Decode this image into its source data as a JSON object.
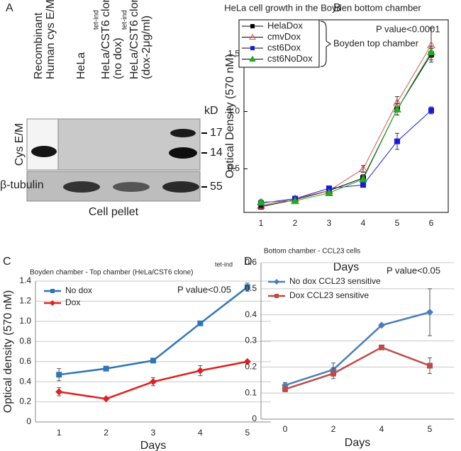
{
  "blot": {
    "panel_label": "A",
    "lanes": [
      {
        "lines": [
          "Recombinant",
          "Human cys E/M"
        ]
      },
      {
        "lines": [
          "HeLa"
        ]
      },
      {
        "lines": [
          "HeLa/CST6 clone",
          "(no dox)"
        ],
        "superscript": "tet-ind"
      },
      {
        "lines": [
          "HeLa/CST6 clone",
          "(dox-2μg/ml)"
        ],
        "superscript": "tet-ind"
      }
    ],
    "kd_label": "kD",
    "markers": [
      "17",
      "14",
      "55"
    ],
    "row_labels": [
      "Cys E/M",
      "β-tubulin"
    ],
    "caption": "Cell pellet"
  },
  "chart_data": [
    {
      "type": "line",
      "panel_label": "B",
      "title": "HeLa cell growth in the Boyden bottom chamber",
      "x_label": "Days",
      "y_label": "Optical Density (570 nM)",
      "categories": [
        "1",
        "2",
        "3",
        "4",
        "5",
        "6"
      ],
      "ylim": [
        0.12,
        1.8
      ],
      "yticks": [
        0.5,
        {
          "value": 1.0,
          "label": "1.0"
        },
        1.5
      ],
      "grid": false,
      "frame": true,
      "legend": "top-left",
      "annotations": [
        "P value<0.0001",
        "Boyden top chamber"
      ],
      "series": [
        {
          "name": "HelaDox",
          "color": "#000000",
          "marker": "square",
          "values": [
            0.17,
            0.23,
            0.31,
            0.42,
            1.02,
            1.5
          ],
          "errors": [
            0.02,
            0.02,
            0.02,
            0.03,
            0.05,
            0.05
          ]
        },
        {
          "name": "cmvDox",
          "color": "#e05050",
          "marker": "triangle-open",
          "values": [
            0.18,
            0.24,
            0.31,
            0.5,
            1.08,
            1.58
          ],
          "errors": [
            0.02,
            0.02,
            0.02,
            0.03,
            0.05,
            0.15
          ]
        },
        {
          "name": "cst6Dox",
          "color": "#1a1adc",
          "marker": "square",
          "values": [
            0.2,
            0.24,
            0.33,
            0.36,
            0.74,
            1.01
          ],
          "errors": [
            0.02,
            0.02,
            0.02,
            0.02,
            0.07,
            0.03
          ]
        },
        {
          "name": "cst6NoDox",
          "color": "#22aa22",
          "marker": "triangle",
          "values": [
            0.21,
            0.22,
            0.29,
            0.41,
            1.02,
            1.52
          ],
          "errors": [
            0.02,
            0.02,
            0.02,
            0.02,
            0.05,
            0.05
          ]
        }
      ]
    },
    {
      "type": "line",
      "panel_label": "C",
      "title": "Boyden chamber - Top chamber (HeLa/CST6 clone)",
      "title_superscript": "tet-ind",
      "x_label": "Days",
      "y_label": "Optical density (570 nM)",
      "categories": [
        "1",
        "2",
        "3",
        "4",
        "5"
      ],
      "ylim": [
        0,
        1.4
      ],
      "yticks": [
        0,
        0.2,
        0.4,
        0.6,
        0.8,
        {
          "value": 1.0,
          "label": "1.0"
        },
        1.2,
        1.4
      ],
      "grid": true,
      "frame": false,
      "legend": "top-left",
      "annotations": [
        "P value<0.05"
      ],
      "series": [
        {
          "name": "No dox",
          "color": "#2e75b6",
          "marker": "square",
          "values": [
            0.47,
            0.53,
            0.61,
            0.98,
            1.34
          ],
          "errors": [
            0.06,
            0.02,
            0.02,
            0.01,
            0.04
          ]
        },
        {
          "name": "Dox",
          "color": "#e02020",
          "marker": "diamond",
          "values": [
            0.3,
            0.23,
            0.4,
            0.51,
            0.6
          ],
          "errors": [
            0.04,
            0.01,
            0.04,
            0.05,
            0.01
          ]
        }
      ]
    },
    {
      "type": "line",
      "panel_label": "D",
      "title": "Bottom chamber - CCL23 cells",
      "x_label": "Days",
      "categories": [
        "0",
        "2",
        "4",
        "5"
      ],
      "ylim": [
        0,
        0.6
      ],
      "yticks": [
        0,
        0.1,
        0.2,
        0.3,
        0.4,
        0.5,
        0.6
      ],
      "grid": true,
      "frame": false,
      "legend": "top-left",
      "annotations": [
        "P value<0.05"
      ],
      "series": [
        {
          "name": "No dox CCL23 sensitive",
          "color": "#4a7ebb",
          "marker": "diamond",
          "values": [
            0.13,
            0.19,
            0.36,
            0.41
          ],
          "errors": [
            0.01,
            0.025,
            0.005,
            0.09
          ]
        },
        {
          "name": "Dox CCL23 sensitive",
          "color": "#be4b48",
          "marker": "square",
          "values": [
            0.115,
            0.175,
            0.275,
            0.205
          ],
          "errors": [
            0.01,
            0.02,
            0.005,
            0.03
          ]
        }
      ]
    }
  ]
}
